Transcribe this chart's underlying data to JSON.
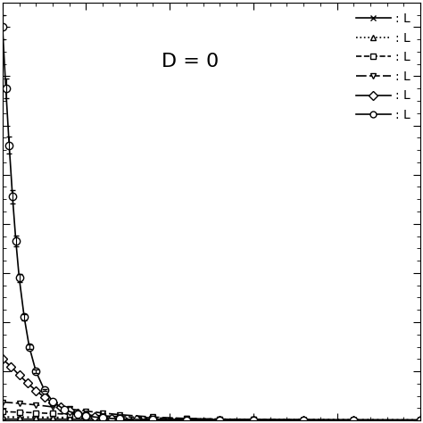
{
  "annotation": "D = 0",
  "series": [
    {
      "label": ": L",
      "linestyle": "-",
      "marker": "x",
      "markersize": 5,
      "markerfacecolor": "black",
      "color": "black",
      "linewidth": 1.2,
      "x": [
        0.5,
        0.6,
        0.7,
        0.8,
        0.9,
        1.0,
        1.1,
        1.2,
        1.4,
        1.6,
        1.8,
        2.0,
        2.3,
        2.6,
        3.0
      ],
      "y": [
        0.055,
        0.054,
        0.053,
        0.052,
        0.051,
        0.05,
        0.049,
        0.048,
        0.046,
        0.044,
        0.042,
        0.04,
        0.037,
        0.034,
        0.03
      ]
    },
    {
      "label": ": L",
      "linestyle": ":",
      "marker": "^",
      "markersize": 5,
      "markerfacecolor": "white",
      "color": "black",
      "linewidth": 1.5,
      "x": [
        0.5,
        0.6,
        0.7,
        0.8,
        0.9,
        1.0,
        1.1,
        1.2,
        1.4,
        1.6,
        1.8,
        2.0,
        2.3,
        2.6,
        3.0
      ],
      "y": [
        0.14,
        0.135,
        0.13,
        0.123,
        0.116,
        0.108,
        0.1,
        0.092,
        0.076,
        0.063,
        0.052,
        0.043,
        0.033,
        0.025,
        0.018
      ]
    },
    {
      "label": ": L",
      "linestyle": "--",
      "marker": "s",
      "markersize": 5,
      "markerfacecolor": "white",
      "color": "black",
      "linewidth": 1.2,
      "x": [
        0.5,
        0.6,
        0.7,
        0.8,
        0.9,
        1.0,
        1.1,
        1.2,
        1.4,
        1.6,
        1.8,
        2.0,
        2.3,
        2.6,
        3.0
      ],
      "y": [
        0.36,
        0.34,
        0.315,
        0.285,
        0.255,
        0.222,
        0.19,
        0.16,
        0.11,
        0.075,
        0.052,
        0.037,
        0.024,
        0.016,
        0.01
      ]
    },
    {
      "label": ": L",
      "linestyle": "--",
      "marker": "v",
      "markersize": 5,
      "markerfacecolor": "white",
      "color": "black",
      "linewidth": 1.2,
      "x": [
        0.5,
        0.6,
        0.7,
        0.8,
        0.9,
        1.0,
        1.1,
        1.2,
        1.4,
        1.6,
        1.8,
        2.0,
        2.3,
        2.6,
        3.0
      ],
      "y": [
        0.75,
        0.7,
        0.635,
        0.555,
        0.47,
        0.385,
        0.305,
        0.238,
        0.14,
        0.083,
        0.052,
        0.034,
        0.02,
        0.012,
        0.007
      ]
    },
    {
      "label": ": L",
      "linestyle": "-",
      "marker": "D",
      "markersize": 5,
      "markerfacecolor": "white",
      "color": "black",
      "linewidth": 1.2,
      "x": [
        0.5,
        0.55,
        0.6,
        0.65,
        0.7,
        0.75,
        0.8,
        0.85,
        0.9,
        0.95,
        1.0,
        1.05,
        1.1,
        1.15,
        1.2,
        1.3,
        1.4,
        1.6,
        1.8,
        2.0,
        2.3,
        2.6,
        3.0
      ],
      "y": [
        2.5,
        2.2,
        1.85,
        1.52,
        1.22,
        0.95,
        0.72,
        0.54,
        0.4,
        0.295,
        0.215,
        0.158,
        0.116,
        0.086,
        0.064,
        0.037,
        0.022,
        0.01,
        0.006,
        0.004,
        0.003,
        0.002,
        0.001
      ]
    },
    {
      "label": ": L",
      "linestyle": "-",
      "marker": "o",
      "markersize": 6,
      "markerfacecolor": "white",
      "color": "black",
      "linewidth": 1.2,
      "x": [
        0.5,
        0.52,
        0.54,
        0.56,
        0.58,
        0.6,
        0.63,
        0.66,
        0.7,
        0.75,
        0.8,
        0.87,
        0.95,
        1.0,
        1.1,
        1.2,
        1.4,
        1.6,
        1.8,
        2.0,
        2.3,
        2.6,
        3.0
      ],
      "y": [
        16.0,
        13.5,
        11.2,
        9.1,
        7.3,
        5.8,
        4.2,
        3.0,
        2.0,
        1.25,
        0.78,
        0.44,
        0.25,
        0.185,
        0.105,
        0.063,
        0.027,
        0.014,
        0.008,
        0.005,
        0.003,
        0.002,
        0.001
      ]
    }
  ],
  "xlim": [
    0.5,
    3.0
  ],
  "ylim": [
    0.0,
    17.0
  ],
  "background_color": "#ffffff"
}
